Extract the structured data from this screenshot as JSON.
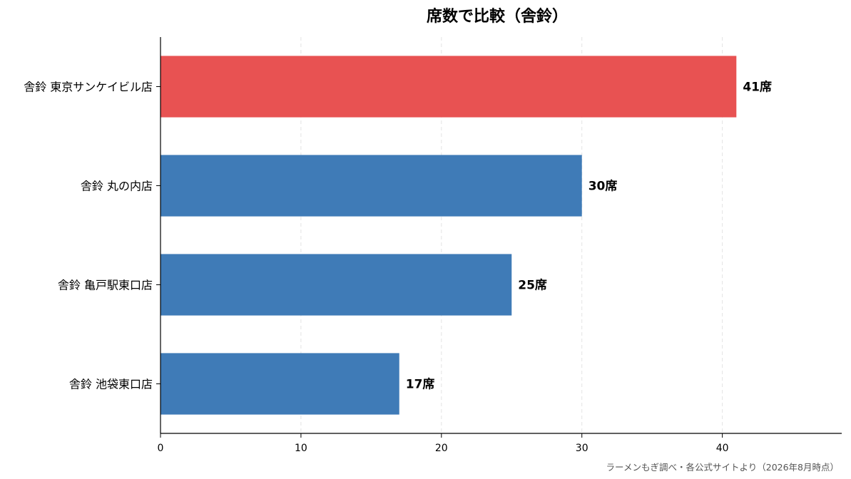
{
  "chart_data": {
    "type": "bar",
    "orientation": "horizontal",
    "title": "席数で比較（舎鈴）",
    "xlabel": "",
    "ylabel": "",
    "categories": [
      "舎鈴 東京サンケイビル店",
      "舎鈴 丸の内店",
      "舎鈴 亀戸駅東口店",
      "舎鈴 池袋東口店"
    ],
    "values": [
      41,
      30,
      25,
      17
    ],
    "value_labels": [
      "41席",
      "30席",
      "25席",
      "17席"
    ],
    "highlight_index": 0,
    "xlim": [
      0,
      48.5
    ],
    "xticks": [
      0,
      10,
      20,
      30,
      40
    ],
    "xtick_labels": [
      "0",
      "10",
      "20",
      "30",
      "40"
    ],
    "grid": "vertical-dashed",
    "colors": {
      "highlight": "#e85252",
      "default": "#3f7bb7",
      "grid": "#e3e3e3",
      "axis": "#000000",
      "source_text": "#555555"
    },
    "source": "ラーメンもぎ調べ・各公式サイトより（2026年8月時点）"
  }
}
